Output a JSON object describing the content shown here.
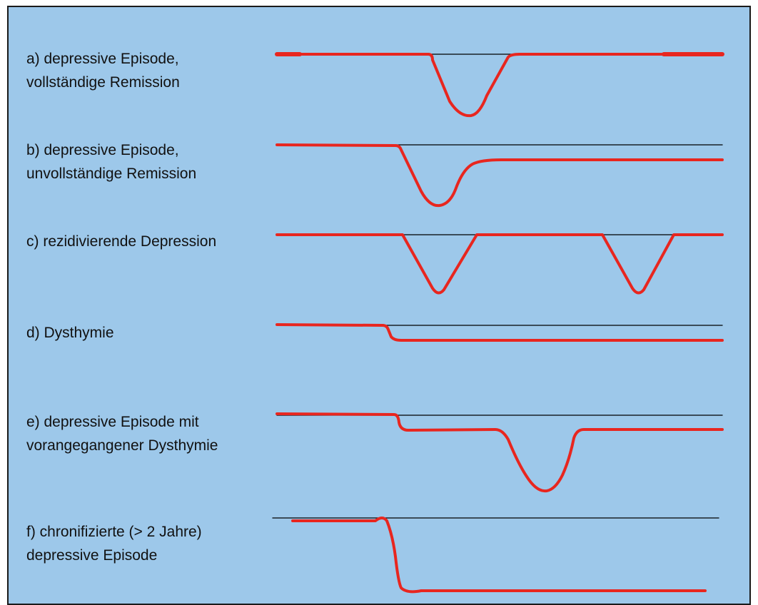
{
  "colors": {
    "background": "#9dc8ea",
    "baseline": "#000000",
    "course_line": "#e8261f",
    "border": "#1a1a1a"
  },
  "panels": [
    {
      "id": "a",
      "lines": [
        "a) depressive Episode,",
        "vollständige Remission"
      ]
    },
    {
      "id": "b",
      "lines": [
        "b) depressive Episode,",
        "unvollständige Remission"
      ]
    },
    {
      "id": "c",
      "lines": [
        "c) rezidivierende Depression"
      ]
    },
    {
      "id": "d",
      "lines": [
        "d) Dysthymie"
      ]
    },
    {
      "id": "e",
      "lines": [
        "e) depressive Episode mit",
        "vorangegangener Dysthymie"
      ]
    },
    {
      "id": "f",
      "lines": [
        "f) chronifizierte (> 2 Jahre)",
        "depressive Episode"
      ]
    }
  ]
}
